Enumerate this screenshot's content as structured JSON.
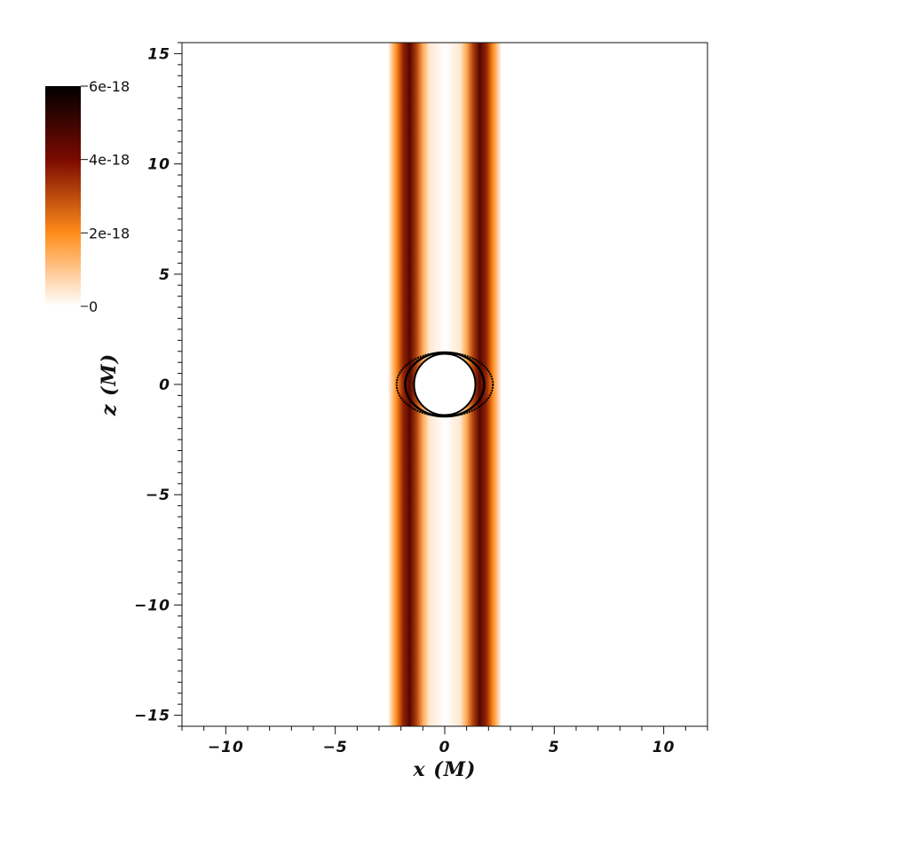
{
  "chart_data": {
    "type": "heatmap",
    "title": "",
    "xlabel": "x (M)",
    "ylabel": "z (M)",
    "xlim": [
      -12,
      12
    ],
    "ylim": [
      -15.5,
      15.5
    ],
    "xticks": [
      -10,
      -5,
      0,
      5,
      10
    ],
    "yticks": [
      -15,
      -10,
      -5,
      0,
      5,
      10,
      15
    ],
    "xtick_labels": [
      "−10",
      "−5",
      "0",
      "5",
      "10"
    ],
    "ytick_labels": [
      "−15",
      "−10",
      "−5",
      "0",
      "5",
      "10",
      "15"
    ],
    "colorbar": {
      "range": [
        0,
        6e-18
      ],
      "ticks": [
        0,
        2e-18,
        4e-18,
        6e-18
      ],
      "tick_labels": [
        "0",
        "2e-18",
        "4e-18",
        "6e-18"
      ],
      "colors": [
        "#ffffff",
        "#ff8c1a",
        "#7a0a00",
        "#000000"
      ]
    },
    "features": {
      "jet_profile_x_vs_value": [
        [
          -2.6,
          0
        ],
        [
          -2.2,
          2e-18
        ],
        [
          -1.9,
          3.6e-18
        ],
        [
          -1.6,
          4.6e-18
        ],
        [
          -1.3,
          3.2e-18
        ],
        [
          -1.0,
          1.5e-18
        ],
        [
          -0.7,
          4e-19
        ],
        [
          0,
          0
        ],
        [
          0.7,
          4e-19
        ],
        [
          1.0,
          1.5e-18
        ],
        [
          1.3,
          3.2e-18
        ],
        [
          1.6,
          4.6e-18
        ],
        [
          1.9,
          3.6e-18
        ],
        [
          2.2,
          2e-18
        ],
        [
          2.6,
          0
        ]
      ],
      "horizon_radius": 1.4,
      "ergosphere_semi_axes": [
        2.2,
        1.45
      ],
      "jet_z_extent": [
        -15.5,
        15.5
      ]
    }
  }
}
